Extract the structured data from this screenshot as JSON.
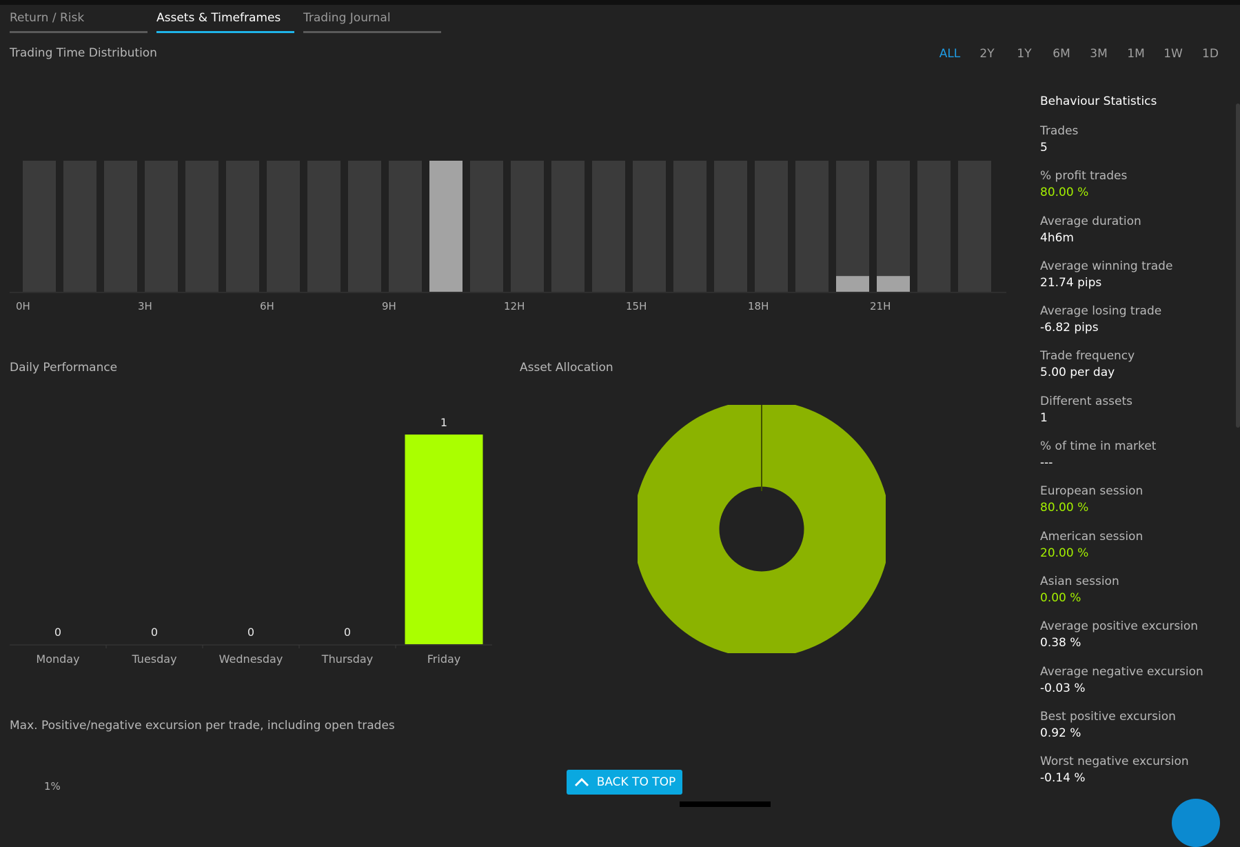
{
  "tabs": [
    {
      "label": "Return / Risk",
      "active": false
    },
    {
      "label": "Assets & Timeframes",
      "active": true
    },
    {
      "label": "Trading Journal",
      "active": false
    }
  ],
  "sections": {
    "time_distribution": "Trading Time Distribution",
    "daily_performance": "Daily Performance",
    "asset_allocation": "Asset Allocation",
    "excursion": "Max. Positive/negative excursion per trade, including open trades"
  },
  "timeframes": [
    "ALL",
    "2Y",
    "1Y",
    "6M",
    "3M",
    "1M",
    "1W",
    "1D"
  ],
  "active_timeframe": "ALL",
  "stats": {
    "title": "Behaviour Statistics",
    "items": [
      {
        "label": "Trades",
        "value": "5",
        "green": false
      },
      {
        "label": "% profit trades",
        "value": "80.00 %",
        "green": true
      },
      {
        "label": "Average duration",
        "value": "4h6m",
        "green": false
      },
      {
        "label": "Average winning trade",
        "value": "21.74 pips",
        "green": false
      },
      {
        "label": "Average losing trade",
        "value": "-6.82 pips",
        "green": false
      },
      {
        "label": "Trade frequency",
        "value": "5.00 per day",
        "green": false
      },
      {
        "label": "Different assets",
        "value": "1",
        "green": false
      },
      {
        "label": "% of time in market",
        "value": "---",
        "green": false
      },
      {
        "label": "European session",
        "value": "80.00 %",
        "green": true
      },
      {
        "label": "American session",
        "value": "20.00 %",
        "green": true
      },
      {
        "label": "Asian session",
        "value": "0.00 %",
        "green": true
      },
      {
        "label": "Average positive excursion",
        "value": "0.38 %",
        "green": false
      },
      {
        "label": "Average negative excursion",
        "value": "-0.03 %",
        "green": false
      },
      {
        "label": "Best positive excursion",
        "value": "0.92 %",
        "green": false
      },
      {
        "label": "Worst negative excursion",
        "value": "-0.14 %",
        "green": false
      }
    ]
  },
  "back_to_top": "BACK TO TOP",
  "excursion_axis_label": "1%",
  "chart_data": [
    {
      "type": "bar",
      "title": "Trading Time Distribution",
      "categories": [
        "0H",
        "1H",
        "2H",
        "3H",
        "4H",
        "5H",
        "6H",
        "7H",
        "8H",
        "9H",
        "10H",
        "11H",
        "12H",
        "13H",
        "14H",
        "15H",
        "16H",
        "17H",
        "18H",
        "19H",
        "20H",
        "21H",
        "22H",
        "23H"
      ],
      "tick_labels": [
        "0H",
        "3H",
        "6H",
        "9H",
        "12H",
        "15H",
        "18H",
        "21H"
      ],
      "values": [
        0,
        0,
        0,
        0,
        0,
        0,
        0,
        0,
        0,
        0,
        1,
        0,
        0,
        0,
        0,
        0,
        0,
        0,
        0,
        0,
        0.12,
        0.12,
        0,
        0
      ],
      "ylim": [
        0,
        1
      ],
      "colors": {
        "background_bar": "#3b3b3b",
        "value_bar": "#a3a3a3"
      }
    },
    {
      "type": "bar",
      "title": "Daily Performance",
      "categories": [
        "Monday",
        "Tuesday",
        "Wednesday",
        "Thursday",
        "Friday"
      ],
      "values": [
        0,
        0,
        0,
        0,
        1
      ],
      "ylim": [
        0,
        1
      ],
      "colors": {
        "bar": "#aaff00"
      }
    },
    {
      "type": "pie",
      "title": "Asset Allocation",
      "slices": [
        {
          "value": 100
        }
      ],
      "donut": true,
      "colors": {
        "slice": "#8bb300"
      }
    }
  ]
}
